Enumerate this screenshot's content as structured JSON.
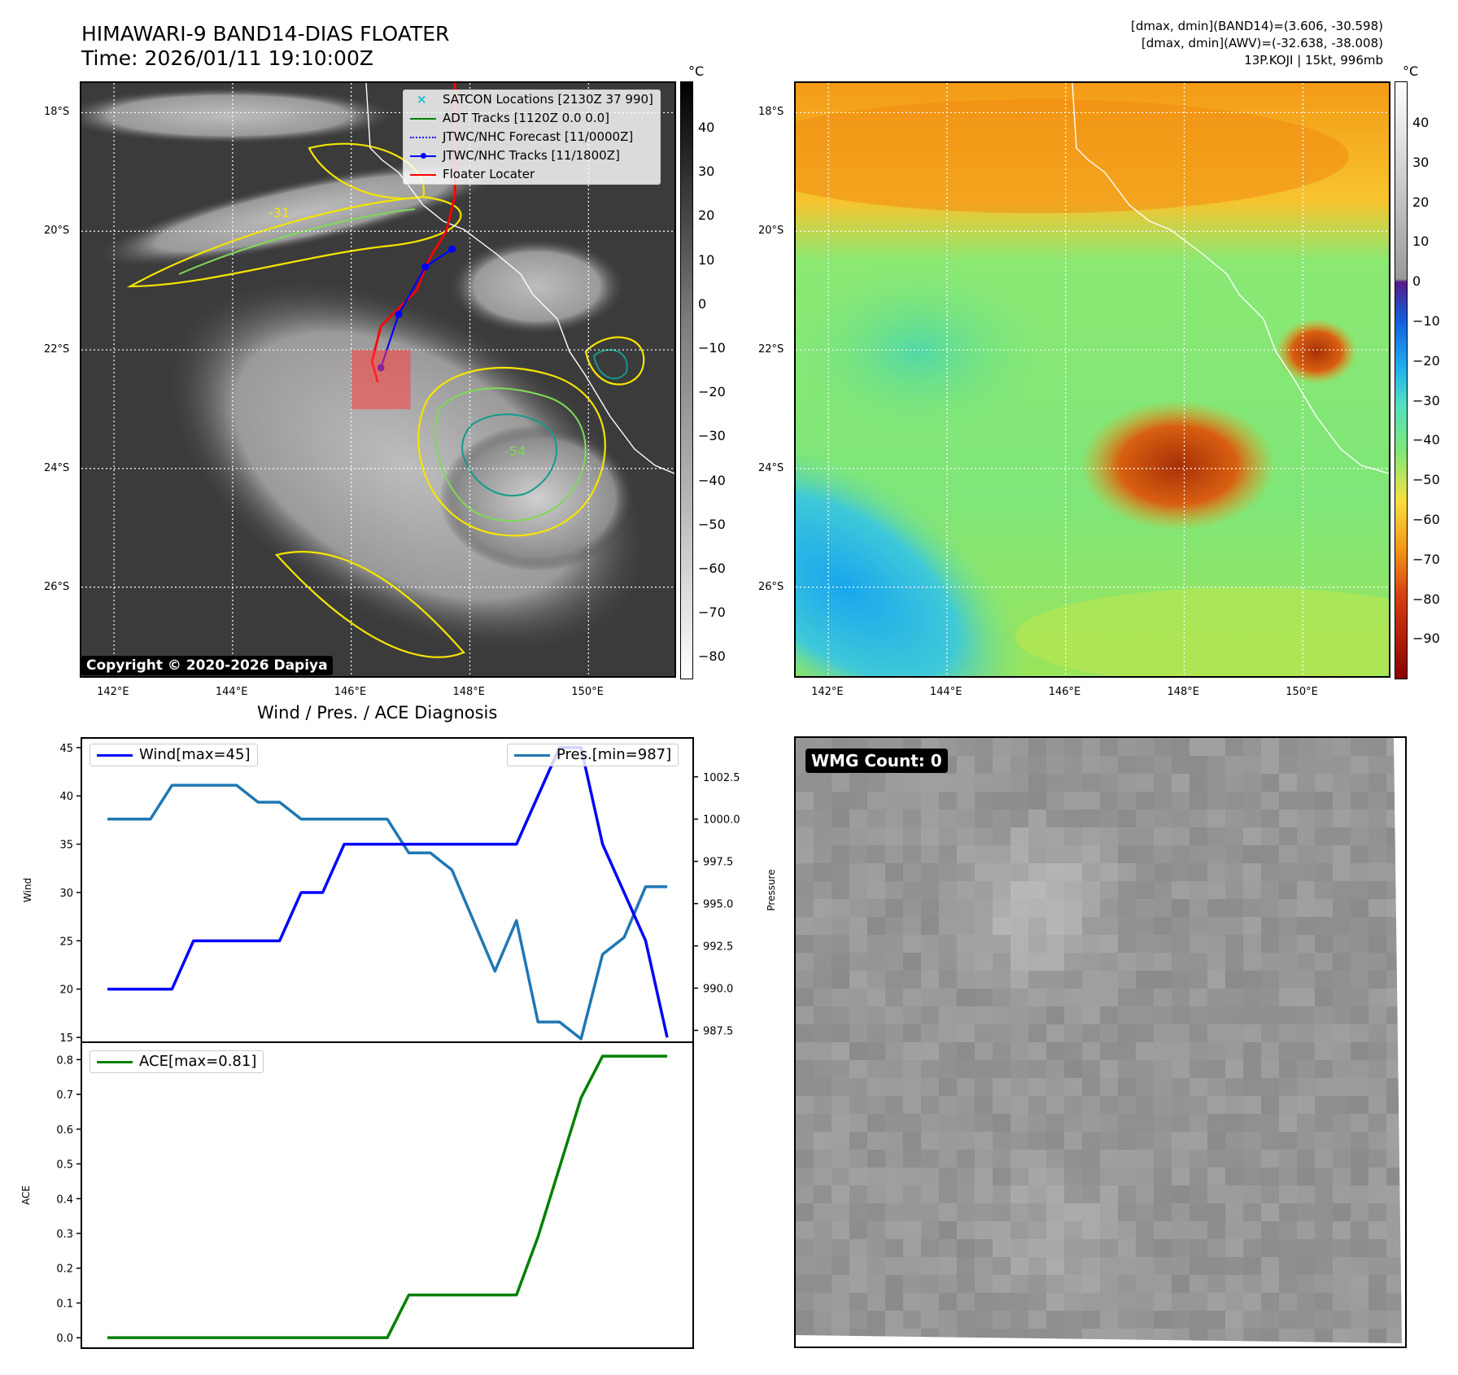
{
  "header": {
    "title_line1": "HIMAWARI-9 BAND14-DIAS FLOATER",
    "title_line2": "Time: 2026/01/11 19:10:00Z",
    "info_line1": "[dmax, dmin](BAND14)=(3.606, -30.598)",
    "info_line2": "[dmax, dmin](AWV)=(-32.638, -38.008)",
    "info_line3": "13P.KOJI | 15kt, 996mb"
  },
  "map": {
    "lat_ticks": [
      "18°S",
      "20°S",
      "22°S",
      "24°S",
      "26°S"
    ],
    "lon_ticks": [
      "142°E",
      "144°E",
      "146°E",
      "148°E",
      "150°E"
    ],
    "lat_values": [
      -18,
      -20,
      -22,
      -24,
      -26
    ],
    "lon_values": [
      142,
      144,
      146,
      148,
      150
    ],
    "lat_range": [
      -27.5,
      -17.5
    ],
    "lon_range": [
      141.45,
      151.45
    ],
    "contour_labels": [
      "-31",
      "-54"
    ],
    "copyright": "Copyright © 2020-2026 Dapiya",
    "legend": [
      {
        "label": "SATCON Locations [2130Z 37 990]",
        "color": "#17becf",
        "style": "x"
      },
      {
        "label": "ADT Tracks [1120Z 0.0 0.0]",
        "color": "#008000",
        "style": "solid"
      },
      {
        "label": "JTWC/NHC Forecast [11/0000Z]",
        "color": "#0000ff",
        "style": "dotted"
      },
      {
        "label": "JTWC/NHC Tracks [11/1800Z]",
        "color": "#0000ff",
        "style": "dot-line"
      },
      {
        "label": "Floater Locater",
        "color": "#ff0000",
        "style": "solid"
      }
    ],
    "jtwc_track": [
      [
        -20.3,
        147.7
      ],
      [
        -20.6,
        147.25
      ],
      [
        -21.4,
        146.8
      ],
      [
        -22.3,
        146.5
      ]
    ],
    "floater_box": {
      "lat": [
        -23.0,
        -22.0
      ],
      "lon": [
        146.0,
        147.0
      ]
    }
  },
  "colorbar_gray": {
    "unit": "°C",
    "ticks": [
      "40",
      "30",
      "20",
      "10",
      "0",
      "−10",
      "−20",
      "−30",
      "−40",
      "−50",
      "−60",
      "−70",
      "−80"
    ]
  },
  "colorbar_color": {
    "unit": "°C",
    "ticks": [
      "40",
      "30",
      "20",
      "10",
      "0",
      "−10",
      "−20",
      "−30",
      "−40",
      "−50",
      "−60",
      "−70",
      "−80",
      "−90"
    ]
  },
  "diagnosis": {
    "title": "Wind / Pres. / ACE Diagnosis",
    "wind_ylabel": "Wind",
    "pres_ylabel": "Pressure",
    "ace_ylabel": "ACE",
    "wind_legend": "Wind[max=45]",
    "pres_legend": "Pres.[min=987]",
    "ace_legend": "ACE[max=0.81]",
    "wind_ticks": [
      "15",
      "20",
      "25",
      "30",
      "35",
      "40",
      "45"
    ],
    "pres_ticks": [
      "987.5",
      "990.0",
      "992.5",
      "995.0",
      "997.5",
      "1000.0",
      "1002.5"
    ],
    "ace_ticks": [
      "0.0",
      "0.1",
      "0.2",
      "0.3",
      "0.4",
      "0.5",
      "0.6",
      "0.7",
      "0.8"
    ],
    "colors": {
      "wind": "#0000ff",
      "pres": "#1f77b4",
      "ace": "#008000"
    }
  },
  "chart_data": [
    {
      "type": "line",
      "title": "Wind / Pres. / ACE Diagnosis",
      "ylabel": "Wind",
      "ylim": [
        14.5,
        46
      ],
      "series": [
        {
          "name": "Wind[max=45]",
          "values": [
            20,
            20,
            20,
            20,
            25,
            25,
            25,
            25,
            25,
            30,
            30,
            35,
            35,
            35,
            35,
            35,
            35,
            35,
            35,
            35,
            40,
            45,
            45,
            35,
            30,
            25,
            15
          ]
        }
      ]
    },
    {
      "type": "line",
      "ylabel": "Pressure",
      "ylim": [
        986.8,
        1004.8
      ],
      "series": [
        {
          "name": "Pres.[min=987]",
          "values": [
            1000,
            1000,
            1000,
            1002,
            1002,
            1002,
            1002,
            1001,
            1001,
            1000,
            1000,
            1000,
            1000,
            1000,
            998,
            998,
            997,
            994,
            991,
            994,
            988,
            988,
            987,
            992,
            993,
            996,
            996
          ]
        }
      ]
    },
    {
      "type": "line",
      "ylabel": "ACE",
      "ylim": [
        -0.03,
        0.85
      ],
      "series": [
        {
          "name": "ACE[max=0.81]",
          "values": [
            0,
            0,
            0,
            0,
            0,
            0,
            0,
            0,
            0,
            0,
            0,
            0,
            0,
            0,
            0.123,
            0.123,
            0.123,
            0.123,
            0.123,
            0.123,
            0.29,
            0.49,
            0.69,
            0.81,
            0.81,
            0.81,
            0.81
          ]
        }
      ]
    }
  ],
  "wmg": {
    "label": "WMG Count: 0"
  }
}
